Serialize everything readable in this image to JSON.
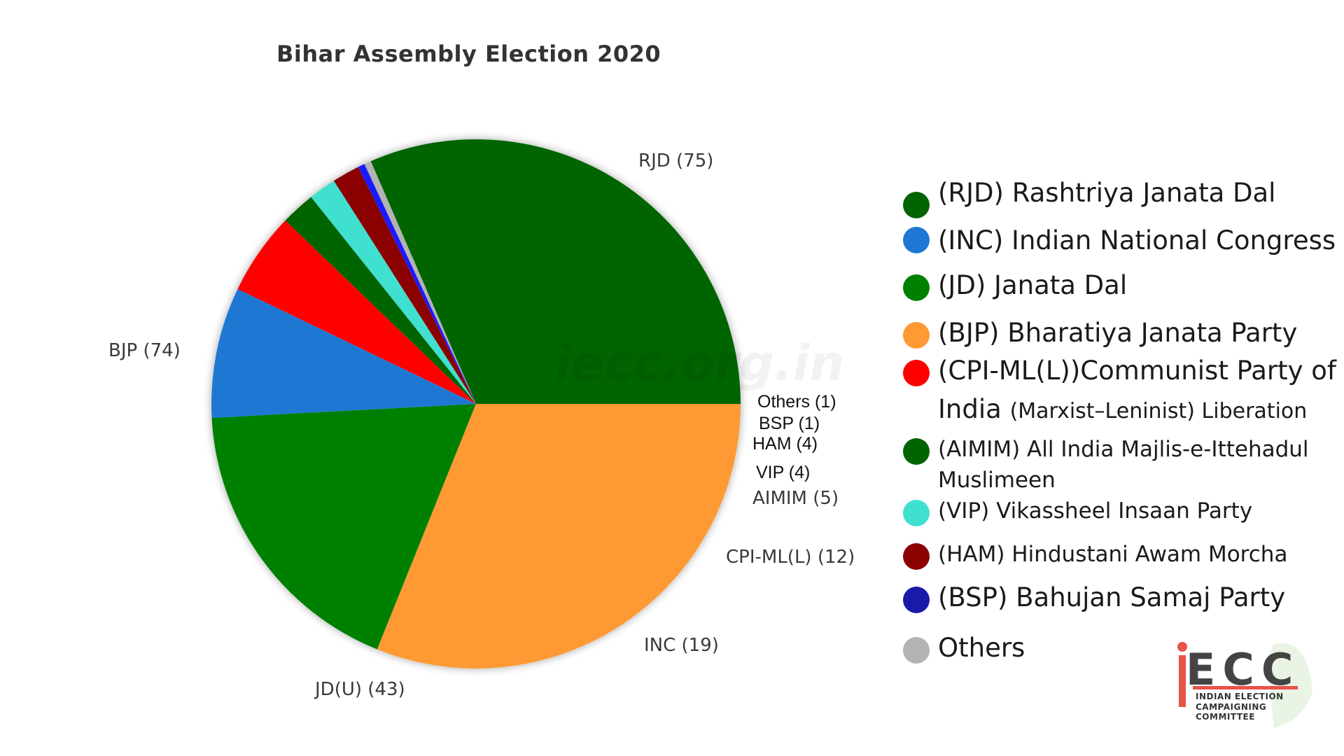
{
  "chart_data": {
    "type": "pie",
    "title": "Bihar Assembly Election 2020",
    "slices": [
      {
        "label": "RJD (75)",
        "value": 75,
        "color": "#006400"
      },
      {
        "label": "Others (1)",
        "value": 1,
        "color": "#b3b3b3"
      },
      {
        "label": "BSP (1)",
        "value": 1,
        "color": "#1a1aff"
      },
      {
        "label": "HAM (4)",
        "value": 4,
        "color": "#8b0000"
      },
      {
        "label": "VIP (4)",
        "value": 4,
        "color": "#40e0d0"
      },
      {
        "label": "AIMIM (5)",
        "value": 5,
        "color": "#006400"
      },
      {
        "label": "CPI-ML(L) (12)",
        "value": 12,
        "color": "#ff0000"
      },
      {
        "label": "INC (19)",
        "value": 19,
        "color": "#1f77d4"
      },
      {
        "label": "JD(U) (43)",
        "value": 43,
        "color": "#008000"
      },
      {
        "label": "BJP (74)",
        "value": 74,
        "color": "#ff9933"
      }
    ],
    "legend_placement": "right"
  },
  "legend": {
    "items": [
      {
        "text": "(RJD) Rashtriya Janata Dal",
        "color": "#006400"
      },
      {
        "text": "(INC) Indian National Congress",
        "color": "#1f77d4"
      },
      {
        "text": "(JD) Janata Dal",
        "color": "#008000"
      },
      {
        "text": "(BJP) Bharatiya Janata Party",
        "color": "#ff9933"
      },
      {
        "text": "(CPI-ML(L))Communist Party of",
        "text2": "India",
        "text2_sub": "(Marxist–Leninist) Liberation",
        "color": "#ff0000"
      },
      {
        "text": "(AIMIM) All India Majlis-e-Ittehadul",
        "text2": "Muslimeen",
        "color": "#006400"
      },
      {
        "text": "(VIP) Vikassheel Insaan Party",
        "color": "#40e0d0"
      },
      {
        "text": "(HAM) Hindustani Awam Morcha",
        "color": "#8b0000"
      },
      {
        "text": "(BSP) Bahujan Samaj Party",
        "color": "#1a1aaa"
      },
      {
        "text": "Others",
        "color": "#b3b3b3"
      }
    ]
  },
  "watermark": "iecc.org.in",
  "logo": {
    "letters": "ECC",
    "line1": "INDIAN ELECTION",
    "line2": "CAMPAIGNING COMMITTEE",
    "accent_color": "#e8534a"
  }
}
